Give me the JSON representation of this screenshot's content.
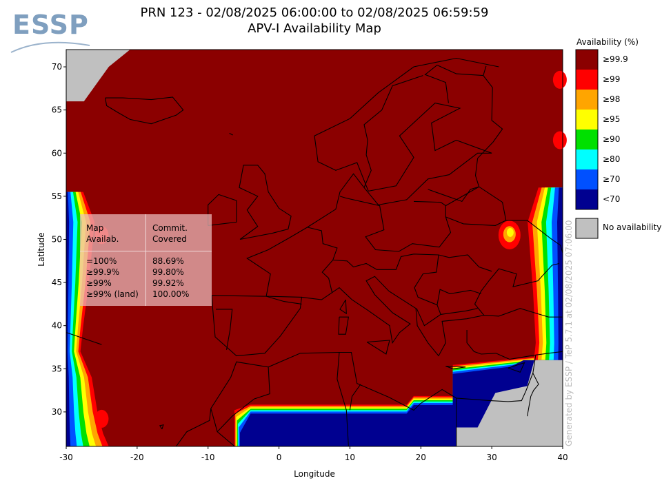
{
  "logo": {
    "text": "ESSP"
  },
  "header": {
    "title_line1": "PRN 123 - 02/08/2025 06:00:00 to 02/08/2025 06:59:59",
    "title_line2": "APV-I Availability Map"
  },
  "credit": "Generated by ESSP / TeP 5.7.1 at 02/08/2025 07:06:00",
  "legend": {
    "title": "Availability (%)",
    "items": [
      {
        "label": "≥99.9",
        "color": "#8b0000"
      },
      {
        "label": "≥99",
        "color": "#ff0000"
      },
      {
        "label": "≥98",
        "color": "#ffa500"
      },
      {
        "label": "≥95",
        "color": "#ffff00"
      },
      {
        "label": "≥90",
        "color": "#00e000"
      },
      {
        "label": "≥80",
        "color": "#00ffff"
      },
      {
        "label": "≥70",
        "color": "#0050ff"
      },
      {
        "label": "<70",
        "color": "#000090"
      }
    ],
    "no_availability": {
      "label": "No availability",
      "color": "#c0c0c0"
    }
  },
  "stats": {
    "col1_header": "Map\nAvailab.",
    "col2_header": "Commit.\nCovered",
    "rows": [
      {
        "threshold": "=100%",
        "covered": "88.69%"
      },
      {
        "threshold": "≥99.9%",
        "covered": "99.80%"
      },
      {
        "threshold": "≥99%",
        "covered": "99.92%"
      },
      {
        "threshold": "≥99% (land)",
        "covered": "100.00%"
      }
    ]
  },
  "chart_data": {
    "type": "heatmap",
    "xlabel": "Longitude",
    "ylabel": "Latitude",
    "xlim": [
      -30,
      40
    ],
    "ylim": [
      26,
      72
    ],
    "xticks": [
      -30,
      -20,
      -10,
      0,
      10,
      20,
      30,
      40
    ],
    "yticks": [
      30,
      35,
      40,
      45,
      50,
      55,
      60,
      65,
      70
    ],
    "dominant_category": "≥99.9",
    "regions": [
      {
        "category": "No availability",
        "area": "northwest corner, around lon -30 to -25, lat 66 to 72"
      },
      {
        "category": "No availability",
        "area": "southeast corner, Middle East, around lon 25 to 40, lat 26 to 36"
      },
      {
        "category": "<70",
        "area": "western edge, lon -30 to -28, lat 27 to 55"
      },
      {
        "category": "<70",
        "area": "southern band, lon -5 to 25, lat 26 to 29"
      },
      {
        "category": "<70",
        "area": "eastern edge, lon 36 to 40, lat 36 to 55"
      },
      {
        "category": "≥99",
        "area": "small patches near lon 39 to 40, lat 60 to 70"
      }
    ]
  }
}
